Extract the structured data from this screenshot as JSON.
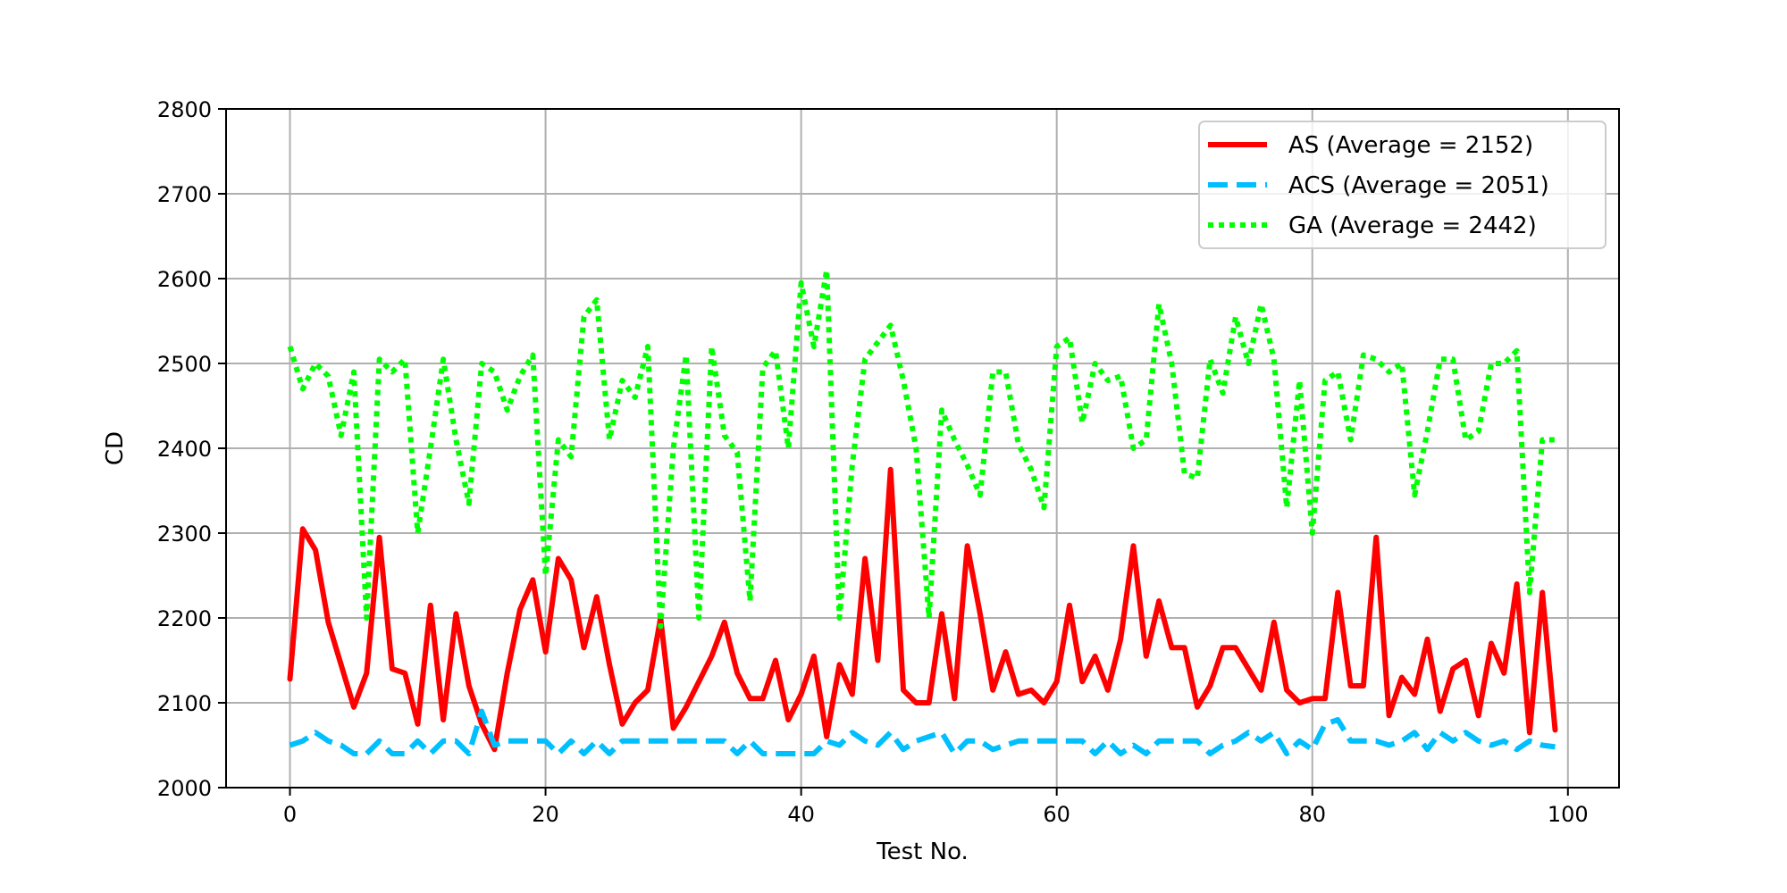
{
  "chart_data": {
    "type": "line",
    "title": "",
    "xlabel": "Test No.",
    "ylabel": "CD",
    "xlim": [
      -5,
      104
    ],
    "ylim": [
      2000,
      2800
    ],
    "xticks": [
      0,
      20,
      40,
      60,
      80,
      100
    ],
    "yticks": [
      2000,
      2100,
      2200,
      2300,
      2400,
      2500,
      2600,
      2700,
      2800
    ],
    "grid": true,
    "legend_position": "top-right",
    "series": [
      {
        "name": "AS (Average = 2152)",
        "color": "#ff0000",
        "style": "solid",
        "values": [
          2128,
          2305,
          2280,
          2195,
          2145,
          2095,
          2135,
          2295,
          2140,
          2135,
          2075,
          2215,
          2080,
          2205,
          2120,
          2075,
          2045,
          2135,
          2210,
          2245,
          2160,
          2270,
          2245,
          2165,
          2225,
          2145,
          2075,
          2100,
          2115,
          2200,
          2070,
          2095,
          2125,
          2155,
          2195,
          2135,
          2105,
          2105,
          2150,
          2080,
          2110,
          2155,
          2060,
          2145,
          2110,
          2270,
          2150,
          2375,
          2115,
          2100,
          2100,
          2205,
          2105,
          2285,
          2205,
          2115,
          2160,
          2110,
          2115,
          2100,
          2125,
          2215,
          2125,
          2155,
          2115,
          2175,
          2285,
          2155,
          2220,
          2165,
          2165,
          2095,
          2120,
          2165,
          2165,
          2140,
          2115,
          2195,
          2115,
          2100,
          2105,
          2105,
          2230,
          2120,
          2120,
          2295,
          2085,
          2130,
          2110,
          2175,
          2090,
          2140,
          2150,
          2085,
          2170,
          2135,
          2240,
          2065,
          2230,
          2068
        ]
      },
      {
        "name": "ACS (Average = 2051)",
        "color": "#00bfff",
        "style": "dashed",
        "values": [
          2050,
          2055,
          2065,
          2055,
          2050,
          2040,
          2040,
          2055,
          2040,
          2040,
          2055,
          2040,
          2055,
          2055,
          2040,
          2090,
          2050,
          2055,
          2055,
          2055,
          2055,
          2040,
          2055,
          2040,
          2055,
          2040,
          2055,
          2055,
          2055,
          2055,
          2055,
          2055,
          2055,
          2055,
          2055,
          2040,
          2055,
          2040,
          2040,
          2040,
          2040,
          2040,
          2055,
          2050,
          2065,
          2055,
          2050,
          2065,
          2045,
          2055,
          2060,
          2065,
          2040,
          2055,
          2055,
          2045,
          2050,
          2055,
          2055,
          2055,
          2055,
          2055,
          2055,
          2040,
          2055,
          2040,
          2050,
          2040,
          2055,
          2055,
          2055,
          2055,
          2040,
          2050,
          2055,
          2065,
          2055,
          2065,
          2040,
          2055,
          2045,
          2075,
          2080,
          2055,
          2055,
          2055,
          2050,
          2055,
          2065,
          2045,
          2065,
          2055,
          2065,
          2055,
          2050,
          2055,
          2045,
          2055,
          2050,
          2048
        ]
      },
      {
        "name": "GA (Average = 2442)",
        "color": "#00ff00",
        "style": "dotted",
        "values": [
          2520,
          2470,
          2500,
          2485,
          2415,
          2490,
          2200,
          2505,
          2490,
          2505,
          2300,
          2400,
          2505,
          2410,
          2335,
          2500,
          2490,
          2445,
          2485,
          2510,
          2250,
          2410,
          2390,
          2555,
          2575,
          2410,
          2480,
          2460,
          2520,
          2190,
          2400,
          2510,
          2200,
          2520,
          2415,
          2395,
          2220,
          2495,
          2515,
          2400,
          2595,
          2520,
          2610,
          2200,
          2380,
          2505,
          2525,
          2545,
          2480,
          2400,
          2200,
          2445,
          2410,
          2380,
          2345,
          2490,
          2490,
          2405,
          2375,
          2330,
          2520,
          2530,
          2430,
          2500,
          2480,
          2485,
          2400,
          2410,
          2570,
          2500,
          2370,
          2365,
          2505,
          2465,
          2555,
          2500,
          2570,
          2505,
          2330,
          2480,
          2300,
          2480,
          2490,
          2410,
          2510,
          2505,
          2490,
          2500,
          2345,
          2420,
          2505,
          2505,
          2410,
          2420,
          2500,
          2500,
          2515,
          2230,
          2410,
          2410
        ]
      }
    ]
  }
}
